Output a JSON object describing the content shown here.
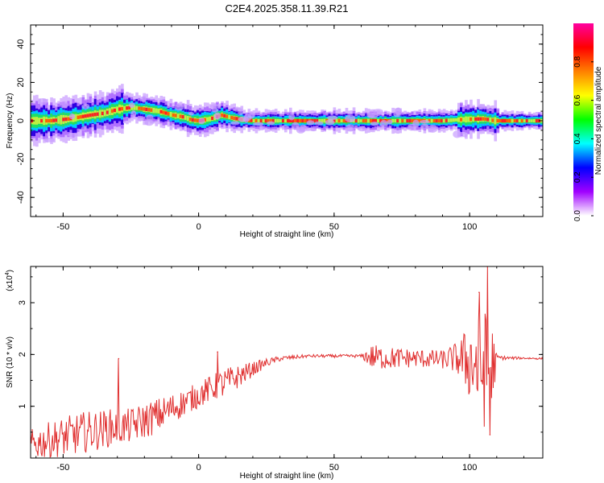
{
  "title": "C2E4.2025.358.11.39.R21",
  "chart_data": [
    {
      "type": "heatmap",
      "name": "spectrogram",
      "xlabel": "Height of straight line (km)",
      "ylabel": "Frequency (Hz)",
      "xlim": [
        -62,
        127
      ],
      "ylim": [
        -50,
        50
      ],
      "x_ticks": [
        -50,
        0,
        50,
        100
      ],
      "y_ticks": [
        -40,
        -20,
        0,
        20,
        40
      ],
      "x_tick_labels": [
        "-50",
        "0",
        "50",
        "100"
      ],
      "y_tick_labels": [
        "-40",
        "-20",
        "0",
        "20",
        "40"
      ],
      "ridge": {
        "x": [
          -62,
          -55,
          -48,
          -40,
          -35,
          -30,
          -25,
          -20,
          -15,
          -10,
          -6,
          -3,
          0,
          4,
          8,
          12,
          16,
          20,
          30,
          40,
          50,
          60,
          70,
          80,
          90,
          95,
          100,
          105,
          109,
          112,
          127
        ],
        "freq": [
          0,
          0,
          1,
          3,
          4,
          6,
          7,
          6,
          5,
          3,
          2,
          0.5,
          0,
          1,
          3,
          1.5,
          0.5,
          0,
          0,
          0,
          0,
          0,
          0,
          0,
          0,
          0.5,
          0.8,
          1,
          0,
          0,
          0
        ]
      },
      "colorbar": {
        "label": "Normalized spectral amplitude",
        "range": [
          0,
          1
        ],
        "ticks": [
          0.0,
          0.2,
          0.4,
          0.6,
          0.8
        ],
        "tick_labels": [
          "0.0",
          "0.2",
          "0.4",
          "0.6",
          "0.8"
        ],
        "colors": [
          "#ffffff",
          "#a000ff",
          "#0000ff",
          "#00ffff",
          "#00ff00",
          "#ffff00",
          "#ff8000",
          "#ff0000",
          "#ff00a0"
        ]
      }
    },
    {
      "type": "line",
      "name": "snr",
      "xlabel": "Height of straight line (km)",
      "ylabel": "SNR (10 * v/v)",
      "y_scale_label": "(x10",
      "y_scale_exp": "4",
      "xlim": [
        -62,
        127
      ],
      "ylim": [
        0,
        3.7
      ],
      "x_ticks": [
        -50,
        0,
        50,
        100
      ],
      "y_ticks": [
        1,
        2,
        3
      ],
      "x_tick_labels": [
        "-50",
        "0",
        "50",
        "100"
      ],
      "y_tick_labels": [
        "1",
        "2",
        "3"
      ],
      "line_color": "#e03030",
      "envelope": {
        "x": [
          -62,
          -55,
          -48,
          -42,
          -36,
          -31,
          -28,
          -25,
          -20,
          -15,
          -10,
          -5,
          0,
          5,
          10,
          15,
          20,
          25,
          30,
          40,
          50,
          60,
          64,
          70,
          80,
          90,
          95,
          98,
          100,
          104,
          108,
          110,
          115,
          120,
          127
        ],
        "mean": [
          0.25,
          0.35,
          0.42,
          0.5,
          0.55,
          0.6,
          0.6,
          0.62,
          0.72,
          0.82,
          0.95,
          1.08,
          1.22,
          1.35,
          1.45,
          1.58,
          1.72,
          1.84,
          1.92,
          1.97,
          1.97,
          1.97,
          1.95,
          1.93,
          1.93,
          1.9,
          1.93,
          1.9,
          1.88,
          1.75,
          1.7,
          1.94,
          1.93,
          1.93,
          1.92
        ],
        "amplitude": [
          0.3,
          0.35,
          0.4,
          0.4,
          0.38,
          0.36,
          0.34,
          0.34,
          0.35,
          0.34,
          0.3,
          0.26,
          0.25,
          0.26,
          0.3,
          0.22,
          0.14,
          0.08,
          0.05,
          0.03,
          0.03,
          0.03,
          0.25,
          0.22,
          0.18,
          0.18,
          0.3,
          0.55,
          0.8,
          1.2,
          1.1,
          0.05,
          0.03,
          0.02,
          0.02
        ]
      },
      "spikes": [
        {
          "x": -29.5,
          "y": 1.92
        },
        {
          "x": 7,
          "y": 2.05
        },
        {
          "x": 103.5,
          "y": 3.2
        },
        {
          "x": 106.5,
          "y": 3.7
        },
        {
          "x": 107.5,
          "y": 0.45
        }
      ]
    }
  ]
}
